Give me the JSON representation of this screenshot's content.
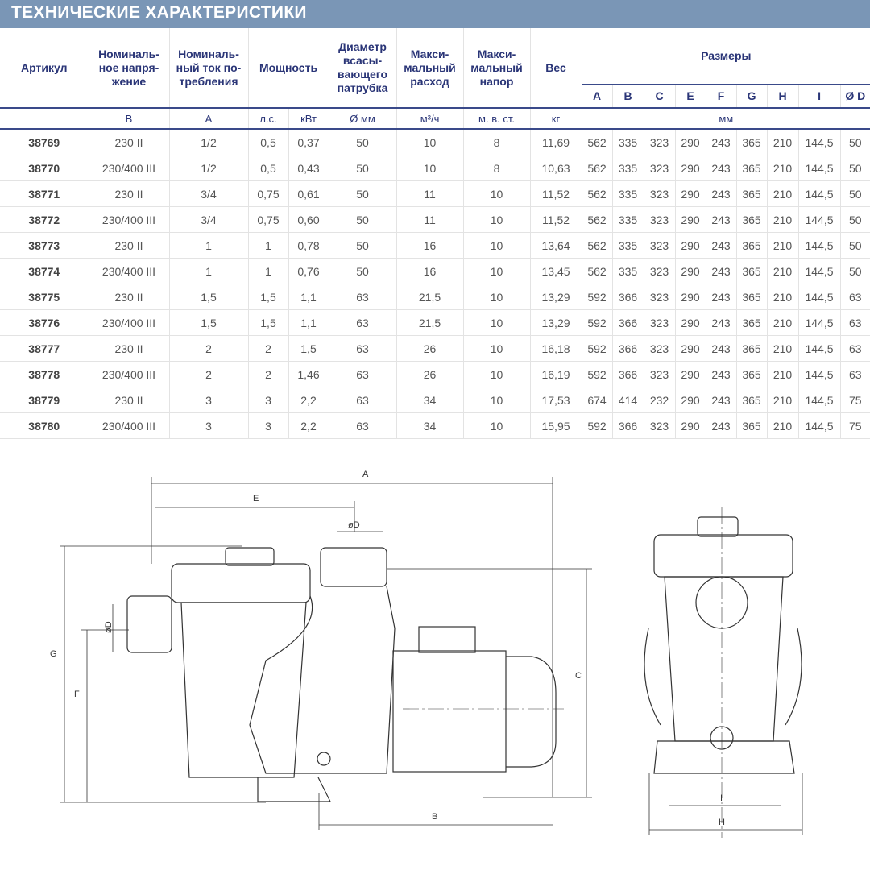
{
  "title": "ТЕХНИЧЕСКИЕ ХАРАКТЕРИСТИКИ",
  "headers": {
    "article": "Артикул",
    "voltage": "Номиналь-ное напря-жение",
    "current": "Номиналь-ный ток по-требления",
    "power": "Мощность",
    "diameter": "Диаметр всасы-вающего патрубка",
    "flow": "Макси-мальный расход",
    "head": "Макси-мальный напор",
    "weight": "Вес",
    "dimensions": "Размеры",
    "dim_letters": [
      "A",
      "B",
      "C",
      "E",
      "F",
      "G",
      "H",
      "I",
      "Ø D"
    ]
  },
  "units": {
    "voltage": "В",
    "current": "А",
    "hp": "л.с.",
    "kw": "кВт",
    "diameter": "Ø мм",
    "flow": "м³/ч",
    "head": "м. в. ст.",
    "weight": "кг",
    "dimensions": "мм"
  },
  "rows": [
    [
      "38769",
      "230 II",
      "1/2",
      "0,5",
      "0,37",
      "50",
      "10",
      "8",
      "11,69",
      "562",
      "335",
      "323",
      "290",
      "243",
      "365",
      "210",
      "144,5",
      "50"
    ],
    [
      "38770",
      "230/400 III",
      "1/2",
      "0,5",
      "0,43",
      "50",
      "10",
      "8",
      "10,63",
      "562",
      "335",
      "323",
      "290",
      "243",
      "365",
      "210",
      "144,5",
      "50"
    ],
    [
      "38771",
      "230 II",
      "3/4",
      "0,75",
      "0,61",
      "50",
      "11",
      "10",
      "11,52",
      "562",
      "335",
      "323",
      "290",
      "243",
      "365",
      "210",
      "144,5",
      "50"
    ],
    [
      "38772",
      "230/400 III",
      "3/4",
      "0,75",
      "0,60",
      "50",
      "11",
      "10",
      "11,52",
      "562",
      "335",
      "323",
      "290",
      "243",
      "365",
      "210",
      "144,5",
      "50"
    ],
    [
      "38773",
      "230 II",
      "1",
      "1",
      "0,78",
      "50",
      "16",
      "10",
      "13,64",
      "562",
      "335",
      "323",
      "290",
      "243",
      "365",
      "210",
      "144,5",
      "50"
    ],
    [
      "38774",
      "230/400 III",
      "1",
      "1",
      "0,76",
      "50",
      "16",
      "10",
      "13,45",
      "562",
      "335",
      "323",
      "290",
      "243",
      "365",
      "210",
      "144,5",
      "50"
    ],
    [
      "38775",
      "230 II",
      "1,5",
      "1,5",
      "1,1",
      "63",
      "21,5",
      "10",
      "13,29",
      "592",
      "366",
      "323",
      "290",
      "243",
      "365",
      "210",
      "144,5",
      "63"
    ],
    [
      "38776",
      "230/400 III",
      "1,5",
      "1,5",
      "1,1",
      "63",
      "21,5",
      "10",
      "13,29",
      "592",
      "366",
      "323",
      "290",
      "243",
      "365",
      "210",
      "144,5",
      "63"
    ],
    [
      "38777",
      "230 II",
      "2",
      "2",
      "1,5",
      "63",
      "26",
      "10",
      "16,18",
      "592",
      "366",
      "323",
      "290",
      "243",
      "365",
      "210",
      "144,5",
      "63"
    ],
    [
      "38778",
      "230/400 III",
      "2",
      "2",
      "1,46",
      "63",
      "26",
      "10",
      "16,19",
      "592",
      "366",
      "323",
      "290",
      "243",
      "365",
      "210",
      "144,5",
      "63"
    ],
    [
      "38779",
      "230 II",
      "3",
      "3",
      "2,2",
      "63",
      "34",
      "10",
      "17,53",
      "674",
      "414",
      "232",
      "290",
      "243",
      "365",
      "210",
      "144,5",
      "75"
    ],
    [
      "38780",
      "230/400 III",
      "3",
      "3",
      "2,2",
      "63",
      "34",
      "10",
      "15,95",
      "592",
      "366",
      "323",
      "290",
      "243",
      "365",
      "210",
      "144,5",
      "75"
    ]
  ],
  "drawing_labels": {
    "A": "A",
    "E": "E",
    "oD_top": "øD",
    "oD_side": "øD",
    "G": "G",
    "F": "F",
    "C": "C",
    "B": "B",
    "I": "I",
    "H": "H"
  }
}
